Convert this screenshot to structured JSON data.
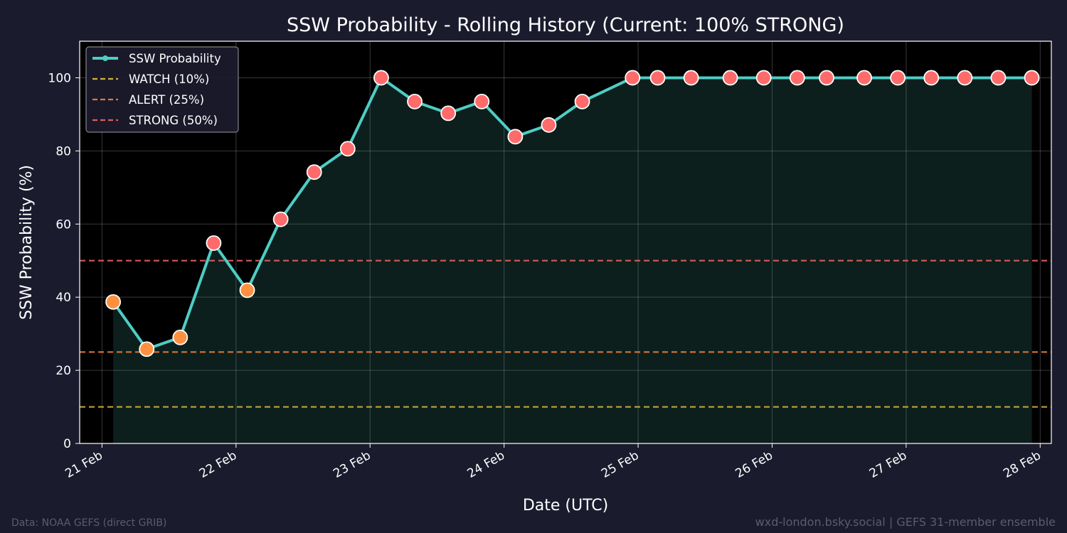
{
  "chart_data": {
    "type": "line",
    "title": "SSW Probability - Rolling History (Current: 100% STRONG)",
    "xlabel": "Date (UTC)",
    "ylabel": "SSW Probability (%)",
    "ylim": [
      0,
      110
    ],
    "yticks": [
      0,
      20,
      40,
      60,
      80,
      100
    ],
    "xlim": [
      "2026-02-20T20:00",
      "2026-02-28T02:00"
    ],
    "xticks": [
      {
        "value": "2026-02-21T00:00",
        "label": "21 Feb"
      },
      {
        "value": "2026-02-22T00:00",
        "label": "22 Feb"
      },
      {
        "value": "2026-02-23T00:00",
        "label": "23 Feb"
      },
      {
        "value": "2026-02-24T00:00",
        "label": "24 Feb"
      },
      {
        "value": "2026-02-25T00:00",
        "label": "25 Feb"
      },
      {
        "value": "2026-02-26T00:00",
        "label": "26 Feb"
      },
      {
        "value": "2026-02-27T00:00",
        "label": "27 Feb"
      },
      {
        "value": "2026-02-28T00:00",
        "label": "28 Feb"
      }
    ],
    "grid": true,
    "legend_position": "top-left",
    "series": [
      {
        "name": "SSW Probability",
        "color": "#4ecdc4",
        "points": [
          {
            "x": "2026-02-21T02:00",
            "y": 38.7
          },
          {
            "x": "2026-02-21T08:00",
            "y": 25.8
          },
          {
            "x": "2026-02-21T14:00",
            "y": 29.0
          },
          {
            "x": "2026-02-21T20:00",
            "y": 54.8
          },
          {
            "x": "2026-02-22T02:00",
            "y": 41.9
          },
          {
            "x": "2026-02-22T08:00",
            "y": 61.3
          },
          {
            "x": "2026-02-22T14:00",
            "y": 74.2
          },
          {
            "x": "2026-02-22T20:00",
            "y": 80.6
          },
          {
            "x": "2026-02-23T02:00",
            "y": 100
          },
          {
            "x": "2026-02-23T08:00",
            "y": 93.5
          },
          {
            "x": "2026-02-23T14:00",
            "y": 90.3
          },
          {
            "x": "2026-02-23T20:00",
            "y": 93.5
          },
          {
            "x": "2026-02-24T02:00",
            "y": 83.9
          },
          {
            "x": "2026-02-24T08:00",
            "y": 87.1
          },
          {
            "x": "2026-02-24T14:00",
            "y": 93.5
          },
          {
            "x": "2026-02-24T23:00",
            "y": 100
          },
          {
            "x": "2026-02-25T03:30",
            "y": 100
          },
          {
            "x": "2026-02-25T09:30",
            "y": 100
          },
          {
            "x": "2026-02-25T16:30",
            "y": 100
          },
          {
            "x": "2026-02-25T22:30",
            "y": 100
          },
          {
            "x": "2026-02-26T04:30",
            "y": 100
          },
          {
            "x": "2026-02-26T09:45",
            "y": 100
          },
          {
            "x": "2026-02-26T16:30",
            "y": 100
          },
          {
            "x": "2026-02-26T22:30",
            "y": 100
          },
          {
            "x": "2026-02-27T04:30",
            "y": 100
          },
          {
            "x": "2026-02-27T10:30",
            "y": 100
          },
          {
            "x": "2026-02-27T16:30",
            "y": 100
          },
          {
            "x": "2026-02-27T22:30",
            "y": 100
          }
        ]
      }
    ],
    "thresholds": [
      {
        "name": "WATCH (10%)",
        "value": 10,
        "color": "#d4b23a"
      },
      {
        "name": "ALERT (25%)",
        "value": 25,
        "color": "#e07b3a"
      },
      {
        "name": "STRONG (50%)",
        "value": 50,
        "color": "#e05d5d"
      }
    ],
    "marker_colors": {
      "below_alert_threshold": "#ff9040",
      "at_or_above_strong": "#ff6b6b"
    }
  },
  "footer": {
    "source": "Data: NOAA GEFS (direct GRIB)",
    "credit": "wxd-london.bsky.social | GEFS 31-member ensemble"
  }
}
